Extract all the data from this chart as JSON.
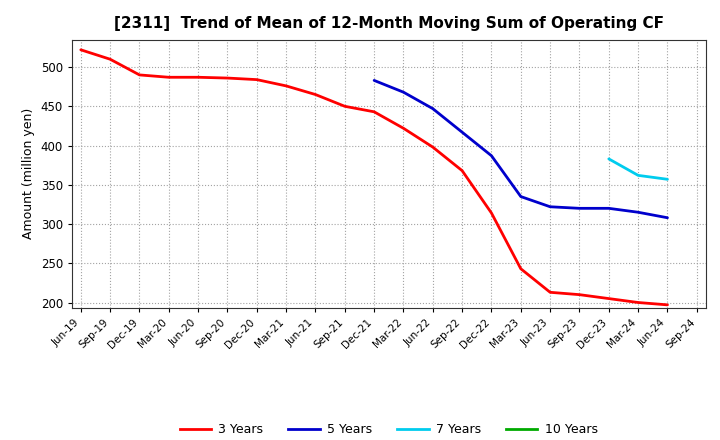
{
  "title": "[2311]  Trend of Mean of 12-Month Moving Sum of Operating CF",
  "ylabel": "Amount (million yen)",
  "background_color": "#ffffff",
  "grid_color": "#999999",
  "ylim": [
    193,
    535
  ],
  "yticks": [
    200,
    250,
    300,
    350,
    400,
    450,
    500
  ],
  "series": {
    "3 Years": {
      "color": "#ff0000",
      "x": [
        "Jun-19",
        "Sep-19",
        "Dec-19",
        "Mar-20",
        "Jun-20",
        "Sep-20",
        "Dec-20",
        "Mar-21",
        "Jun-21",
        "Sep-21",
        "Dec-21",
        "Mar-22",
        "Jun-22",
        "Sep-22",
        "Dec-22",
        "Mar-23",
        "Jun-23",
        "Sep-23",
        "Dec-23",
        "Mar-24",
        "Jun-24"
      ],
      "y": [
        522,
        510,
        490,
        487,
        487,
        486,
        484,
        476,
        465,
        450,
        443,
        422,
        398,
        368,
        314,
        243,
        213,
        210,
        205,
        200,
        197
      ]
    },
    "5 Years": {
      "color": "#0000cc",
      "x": [
        "Dec-21",
        "Mar-22",
        "Jun-22",
        "Sep-22",
        "Dec-22",
        "Mar-23",
        "Jun-23",
        "Sep-23",
        "Dec-23",
        "Mar-24",
        "Jun-24"
      ],
      "y": [
        483,
        468,
        447,
        417,
        387,
        335,
        322,
        320,
        320,
        315,
        308
      ]
    },
    "7 Years": {
      "color": "#00ccee",
      "x": [
        "Dec-23",
        "Mar-24",
        "Jun-24"
      ],
      "y": [
        383,
        362,
        357
      ]
    },
    "10 Years": {
      "color": "#00aa00",
      "x": [],
      "y": []
    }
  },
  "xtick_labels": [
    "Jun-19",
    "Sep-19",
    "Dec-19",
    "Mar-20",
    "Jun-20",
    "Sep-20",
    "Dec-20",
    "Mar-21",
    "Jun-21",
    "Sep-21",
    "Dec-21",
    "Mar-22",
    "Jun-22",
    "Sep-22",
    "Dec-22",
    "Mar-23",
    "Jun-23",
    "Sep-23",
    "Dec-23",
    "Mar-24",
    "Jun-24",
    "Sep-24"
  ]
}
